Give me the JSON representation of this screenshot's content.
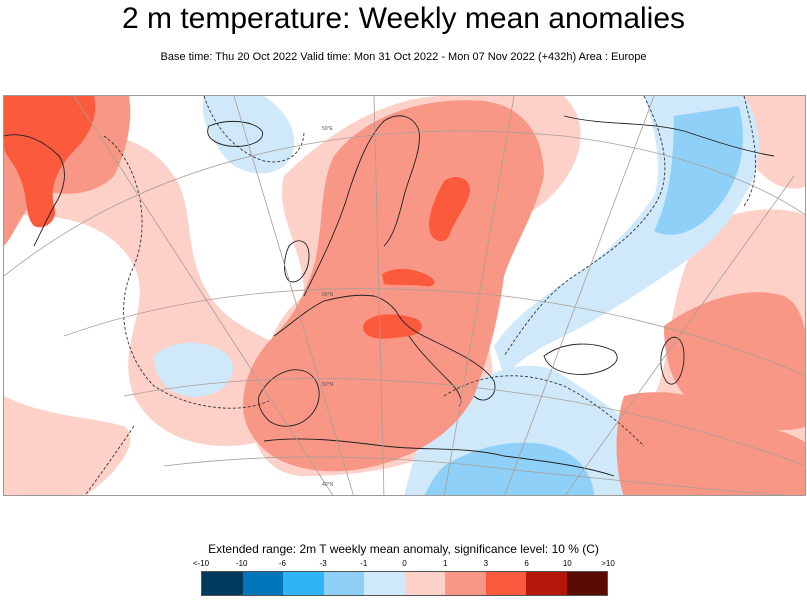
{
  "header": {
    "title": "2 m temperature: Weekly mean anomalies",
    "subtitle": "Base time: Thu 20 Oct 2022 Valid time: Mon 31 Oct 2022 - Mon 07 Nov 2022 (+432h) Area : Europe"
  },
  "map": {
    "graticule_labels": [
      "50°E",
      "60°N",
      "50°N",
      "40°N",
      "30°N"
    ],
    "palette": {
      "strong_warm": "#fc5a3c",
      "warm": "#f99786",
      "light_warm": "#fdd0c8",
      "light_cool": "#cfe9fb",
      "cool": "#8fd0f8",
      "coast": "#202020",
      "graticule": "#a99e95"
    }
  },
  "legend": {
    "title": "Extended range: 2m T weekly mean anomaly, significance level: 10 % (C)",
    "labels": [
      "<-10",
      "-10",
      "-6",
      "-3",
      "-1",
      "0",
      "1",
      "3",
      "6",
      "10",
      ">10"
    ],
    "colors": [
      "#003a5c",
      "#0076ba",
      "#2fb5f7",
      "#8fd0f8",
      "#cfe9fb",
      "#ffffff",
      "#fdd0c8",
      "#f99786",
      "#fc5a3c",
      "#b3170a",
      "#5a0b04"
    ]
  }
}
